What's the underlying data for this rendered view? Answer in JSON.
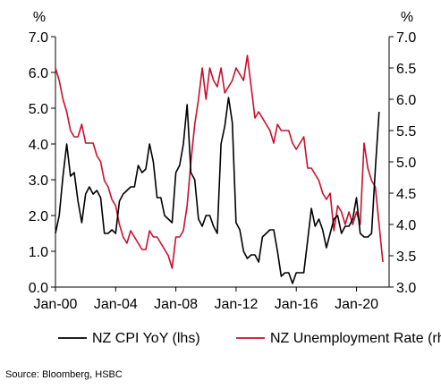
{
  "chart_data": {
    "type": "line",
    "left_axis_unit": "%",
    "right_axis_unit": "%",
    "left_ylim": [
      0,
      7
    ],
    "right_ylim": [
      3,
      7
    ],
    "left_ticks": [
      "0.0",
      "1.0",
      "2.0",
      "3.0",
      "4.0",
      "5.0",
      "6.0",
      "7.0"
    ],
    "right_ticks": [
      "3.0",
      "3.5",
      "4.0",
      "4.5",
      "5.0",
      "5.5",
      "6.0",
      "6.5",
      "7.0"
    ],
    "x_range": [
      "2000-01",
      "2022-03"
    ],
    "x_ticks": [
      {
        "date": "2000-01",
        "label": "Jan-00"
      },
      {
        "date": "2004-01",
        "label": "Jan-04"
      },
      {
        "date": "2008-01",
        "label": "Jan-08"
      },
      {
        "date": "2012-01",
        "label": "Jan-12"
      },
      {
        "date": "2016-01",
        "label": "Jan-16"
      },
      {
        "date": "2020-01",
        "label": "Jan-20"
      }
    ],
    "grid": false,
    "legend_position": "bottom",
    "series": [
      {
        "name": "NZ CPI YoY (lhs)",
        "axis": "left",
        "color": "#000000",
        "points": [
          [
            "2000-01",
            1.5
          ],
          [
            "2000-04",
            2.0
          ],
          [
            "2000-07",
            3.1
          ],
          [
            "2000-10",
            4.0
          ],
          [
            "2001-01",
            3.1
          ],
          [
            "2001-04",
            3.2
          ],
          [
            "2001-07",
            2.4
          ],
          [
            "2001-10",
            1.8
          ],
          [
            "2002-01",
            2.6
          ],
          [
            "2002-04",
            2.8
          ],
          [
            "2002-07",
            2.6
          ],
          [
            "2002-10",
            2.7
          ],
          [
            "2003-01",
            2.5
          ],
          [
            "2003-04",
            1.5
          ],
          [
            "2003-07",
            1.5
          ],
          [
            "2003-10",
            1.6
          ],
          [
            "2004-01",
            1.5
          ],
          [
            "2004-04",
            2.4
          ],
          [
            "2004-07",
            2.6
          ],
          [
            "2004-10",
            2.7
          ],
          [
            "2005-01",
            2.8
          ],
          [
            "2005-04",
            2.8
          ],
          [
            "2005-07",
            3.4
          ],
          [
            "2005-10",
            3.2
          ],
          [
            "2006-01",
            3.3
          ],
          [
            "2006-04",
            4.0
          ],
          [
            "2006-07",
            3.5
          ],
          [
            "2006-10",
            2.5
          ],
          [
            "2007-01",
            2.5
          ],
          [
            "2007-04",
            2.0
          ],
          [
            "2007-07",
            1.9
          ],
          [
            "2007-10",
            1.8
          ],
          [
            "2008-01",
            3.2
          ],
          [
            "2008-04",
            3.4
          ],
          [
            "2008-07",
            4.0
          ],
          [
            "2008-10",
            5.1
          ],
          [
            "2009-01",
            3.2
          ],
          [
            "2009-04",
            3.0
          ],
          [
            "2009-07",
            1.9
          ],
          [
            "2009-10",
            1.7
          ],
          [
            "2010-01",
            2.0
          ],
          [
            "2010-04",
            2.0
          ],
          [
            "2010-07",
            1.7
          ],
          [
            "2010-10",
            1.5
          ],
          [
            "2011-01",
            4.0
          ],
          [
            "2011-04",
            4.5
          ],
          [
            "2011-07",
            5.3
          ],
          [
            "2011-10",
            4.6
          ],
          [
            "2012-01",
            1.8
          ],
          [
            "2012-04",
            1.6
          ],
          [
            "2012-07",
            1.0
          ],
          [
            "2012-10",
            0.8
          ],
          [
            "2013-01",
            0.9
          ],
          [
            "2013-04",
            0.9
          ],
          [
            "2013-07",
            0.7
          ],
          [
            "2013-10",
            1.4
          ],
          [
            "2014-01",
            1.5
          ],
          [
            "2014-04",
            1.6
          ],
          [
            "2014-07",
            1.6
          ],
          [
            "2014-10",
            1.0
          ],
          [
            "2015-01",
            0.3
          ],
          [
            "2015-04",
            0.4
          ],
          [
            "2015-07",
            0.4
          ],
          [
            "2015-10",
            0.1
          ],
          [
            "2016-01",
            0.4
          ],
          [
            "2016-04",
            0.4
          ],
          [
            "2016-07",
            0.4
          ],
          [
            "2016-10",
            1.3
          ],
          [
            "2017-01",
            2.2
          ],
          [
            "2017-04",
            1.7
          ],
          [
            "2017-07",
            1.9
          ],
          [
            "2017-10",
            1.6
          ],
          [
            "2018-01",
            1.1
          ],
          [
            "2018-04",
            1.5
          ],
          [
            "2018-07",
            1.9
          ],
          [
            "2018-10",
            2.0
          ],
          [
            "2019-01",
            1.5
          ],
          [
            "2019-04",
            1.7
          ],
          [
            "2019-07",
            1.7
          ],
          [
            "2019-10",
            1.9
          ],
          [
            "2020-01",
            2.5
          ],
          [
            "2020-04",
            1.5
          ],
          [
            "2020-07",
            1.4
          ],
          [
            "2020-10",
            1.4
          ],
          [
            "2021-01",
            1.5
          ],
          [
            "2021-04",
            3.3
          ],
          [
            "2021-07",
            4.9
          ]
        ]
      },
      {
        "name": "NZ Unemployment Rate (rhs)",
        "axis": "right",
        "color": "#c8102e",
        "points": [
          [
            "2000-01",
            6.5
          ],
          [
            "2000-04",
            6.3
          ],
          [
            "2000-07",
            6.0
          ],
          [
            "2000-10",
            5.8
          ],
          [
            "2001-01",
            5.5
          ],
          [
            "2001-04",
            5.4
          ],
          [
            "2001-07",
            5.4
          ],
          [
            "2001-10",
            5.6
          ],
          [
            "2002-01",
            5.3
          ],
          [
            "2002-04",
            5.3
          ],
          [
            "2002-07",
            5.3
          ],
          [
            "2002-10",
            5.1
          ],
          [
            "2003-01",
            5.0
          ],
          [
            "2003-04",
            4.7
          ],
          [
            "2003-07",
            4.6
          ],
          [
            "2003-10",
            4.4
          ],
          [
            "2004-01",
            4.3
          ],
          [
            "2004-04",
            4.0
          ],
          [
            "2004-07",
            3.8
          ],
          [
            "2004-10",
            3.7
          ],
          [
            "2005-01",
            3.9
          ],
          [
            "2005-04",
            3.8
          ],
          [
            "2005-07",
            3.7
          ],
          [
            "2005-10",
            3.6
          ],
          [
            "2006-01",
            3.6
          ],
          [
            "2006-04",
            3.9
          ],
          [
            "2006-07",
            3.8
          ],
          [
            "2006-10",
            3.8
          ],
          [
            "2007-01",
            3.7
          ],
          [
            "2007-04",
            3.6
          ],
          [
            "2007-07",
            3.5
          ],
          [
            "2007-10",
            3.3
          ],
          [
            "2008-01",
            3.8
          ],
          [
            "2008-04",
            3.8
          ],
          [
            "2008-07",
            3.9
          ],
          [
            "2008-10",
            4.3
          ],
          [
            "2009-01",
            5.0
          ],
          [
            "2009-04",
            5.6
          ],
          [
            "2009-07",
            6.0
          ],
          [
            "2009-10",
            6.5
          ],
          [
            "2010-01",
            6.0
          ],
          [
            "2010-04",
            6.5
          ],
          [
            "2010-07",
            6.3
          ],
          [
            "2010-10",
            6.2
          ],
          [
            "2011-01",
            6.5
          ],
          [
            "2011-04",
            6.1
          ],
          [
            "2011-07",
            6.2
          ],
          [
            "2011-10",
            6.3
          ],
          [
            "2012-01",
            6.5
          ],
          [
            "2012-04",
            6.4
          ],
          [
            "2012-07",
            6.3
          ],
          [
            "2012-10",
            6.7
          ],
          [
            "2013-01",
            6.2
          ],
          [
            "2013-04",
            5.7
          ],
          [
            "2013-07",
            5.8
          ],
          [
            "2013-10",
            5.7
          ],
          [
            "2014-01",
            5.6
          ],
          [
            "2014-04",
            5.5
          ],
          [
            "2014-07",
            5.3
          ],
          [
            "2014-10",
            5.6
          ],
          [
            "2015-01",
            5.5
          ],
          [
            "2015-04",
            5.5
          ],
          [
            "2015-07",
            5.5
          ],
          [
            "2015-10",
            5.3
          ],
          [
            "2016-01",
            5.2
          ],
          [
            "2016-04",
            5.3
          ],
          [
            "2016-07",
            5.4
          ],
          [
            "2016-10",
            4.9
          ],
          [
            "2017-01",
            4.9
          ],
          [
            "2017-04",
            4.8
          ],
          [
            "2017-07",
            4.7
          ],
          [
            "2017-10",
            4.5
          ],
          [
            "2018-01",
            4.4
          ],
          [
            "2018-04",
            4.5
          ],
          [
            "2018-07",
            3.9
          ],
          [
            "2018-10",
            4.3
          ],
          [
            "2019-01",
            4.2
          ],
          [
            "2019-04",
            4.0
          ],
          [
            "2019-07",
            4.2
          ],
          [
            "2019-10",
            4.0
          ],
          [
            "2020-01",
            4.2
          ],
          [
            "2020-04",
            4.0
          ],
          [
            "2020-07",
            5.3
          ],
          [
            "2020-10",
            4.9
          ],
          [
            "2021-01",
            4.7
          ],
          [
            "2021-04",
            4.6
          ],
          [
            "2021-07",
            4.0
          ],
          [
            "2021-10",
            3.4
          ]
        ]
      }
    ]
  },
  "source_text": "Source:  Bloomberg, HSBC"
}
